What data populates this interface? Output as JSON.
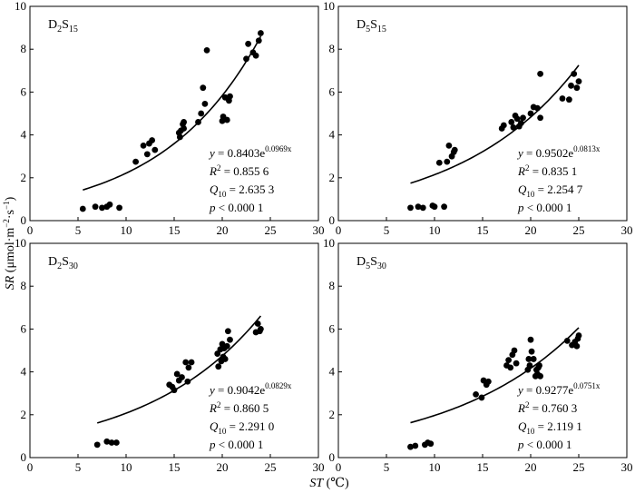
{
  "figure": {
    "y_axis_title": {
      "main": "SR",
      "open": " (μmol·m",
      "exp1": "−2",
      "mid": "·s",
      "exp2": "−1",
      "close": ")"
    },
    "x_axis_title": {
      "main": "ST",
      "unit": " (℃)"
    }
  },
  "chart_data": [
    {
      "type": "scatter",
      "panel": "D2S15",
      "label": {
        "base": "D",
        "sub1": "2",
        "mid": "S",
        "sub2": "15"
      },
      "xlim": [
        0,
        30
      ],
      "ylim": [
        0,
        10
      ],
      "x_ticks": [
        "0",
        "5",
        "10",
        "15",
        "20",
        "25",
        "30"
      ],
      "y_ticks": [
        "0",
        "2",
        "4",
        "6",
        "8",
        "10"
      ],
      "points": [
        [
          5.5,
          0.55
        ],
        [
          6.8,
          0.65
        ],
        [
          7.5,
          0.6
        ],
        [
          8.0,
          0.65
        ],
        [
          8.3,
          0.75
        ],
        [
          9.3,
          0.6
        ],
        [
          11.0,
          2.75
        ],
        [
          11.8,
          3.5
        ],
        [
          12.2,
          3.1
        ],
        [
          12.4,
          3.6
        ],
        [
          12.7,
          3.75
        ],
        [
          13.0,
          3.3
        ],
        [
          15.5,
          4.1
        ],
        [
          15.6,
          3.9
        ],
        [
          15.7,
          4.2
        ],
        [
          15.9,
          4.5
        ],
        [
          16.0,
          4.6
        ],
        [
          16.0,
          4.3
        ],
        [
          17.5,
          4.6
        ],
        [
          17.8,
          5.0
        ],
        [
          18.0,
          6.2
        ],
        [
          18.2,
          5.45
        ],
        [
          18.4,
          7.95
        ],
        [
          20.0,
          4.65
        ],
        [
          20.1,
          4.85
        ],
        [
          20.3,
          5.75
        ],
        [
          20.5,
          4.7
        ],
        [
          20.7,
          5.6
        ],
        [
          20.8,
          5.8
        ],
        [
          22.5,
          7.55
        ],
        [
          22.7,
          8.25
        ],
        [
          23.2,
          7.85
        ],
        [
          23.5,
          7.7
        ],
        [
          23.8,
          8.4
        ],
        [
          24.0,
          8.75
        ]
      ],
      "fit": {
        "a": 0.8403,
        "b": 0.0969,
        "x_range": [
          5.5,
          24
        ]
      },
      "stats": {
        "y_lead": "y",
        "y_eq": " = 0.8403e",
        "y_exp": "0.0969x",
        "r_lead": "R",
        "r_sup": "2",
        "r_val": " = 0.855 6",
        "q_lead": "Q",
        "q_sub": "10",
        "q_val": " = 2.635 3",
        "p_lead": "p",
        "p_val": " < 0.000 1"
      }
    },
    {
      "type": "scatter",
      "panel": "D5S15",
      "label": {
        "base": "D",
        "sub1": "5",
        "mid": "S",
        "sub2": "15"
      },
      "xlim": [
        0,
        30
      ],
      "ylim": [
        0,
        10
      ],
      "x_ticks": [
        "0",
        "5",
        "10",
        "15",
        "20",
        "25",
        "30"
      ],
      "y_ticks": [
        "0",
        "2",
        "4",
        "6",
        "8",
        "10"
      ],
      "points": [
        [
          7.5,
          0.6
        ],
        [
          8.3,
          0.65
        ],
        [
          8.8,
          0.6
        ],
        [
          9.8,
          0.7
        ],
        [
          10.0,
          0.65
        ],
        [
          11.0,
          0.65
        ],
        [
          10.5,
          2.7
        ],
        [
          11.3,
          2.75
        ],
        [
          11.5,
          3.5
        ],
        [
          11.8,
          3.0
        ],
        [
          12.0,
          3.2
        ],
        [
          12.1,
          3.3
        ],
        [
          17.0,
          4.3
        ],
        [
          17.2,
          4.45
        ],
        [
          18.0,
          4.6
        ],
        [
          18.2,
          4.35
        ],
        [
          18.4,
          4.9
        ],
        [
          18.6,
          4.75
        ],
        [
          18.8,
          4.4
        ],
        [
          19.0,
          4.55
        ],
        [
          19.2,
          4.8
        ],
        [
          20.0,
          5.0
        ],
        [
          20.3,
          5.3
        ],
        [
          20.7,
          5.25
        ],
        [
          21.0,
          4.8
        ],
        [
          21.0,
          6.85
        ],
        [
          23.3,
          5.7
        ],
        [
          24.0,
          5.65
        ],
        [
          24.2,
          6.3
        ],
        [
          24.5,
          6.85
        ],
        [
          24.8,
          6.2
        ],
        [
          25.0,
          6.5
        ]
      ],
      "fit": {
        "a": 0.9502,
        "b": 0.0813,
        "x_range": [
          7.5,
          25
        ]
      },
      "stats": {
        "y_lead": "y",
        "y_eq": " = 0.9502e",
        "y_exp": "0.0813x",
        "r_lead": "R",
        "r_sup": "2",
        "r_val": " = 0.835 1",
        "q_lead": "Q",
        "q_sub": "10",
        "q_val": " = 2.254 7",
        "p_lead": "p",
        "p_val": " < 0.000 1"
      }
    },
    {
      "type": "scatter",
      "panel": "D2S30",
      "label": {
        "base": "D",
        "sub1": "2",
        "mid": "S",
        "sub2": "30"
      },
      "xlim": [
        0,
        30
      ],
      "ylim": [
        0,
        10
      ],
      "x_ticks": [
        "0",
        "5",
        "10",
        "15",
        "20",
        "25",
        "30"
      ],
      "y_ticks": [
        "0",
        "2",
        "4",
        "6",
        "8",
        "10"
      ],
      "points": [
        [
          7.0,
          0.6
        ],
        [
          8.0,
          0.75
        ],
        [
          8.5,
          0.7
        ],
        [
          9.0,
          0.7
        ],
        [
          14.5,
          3.4
        ],
        [
          14.8,
          3.3
        ],
        [
          15.0,
          3.15
        ],
        [
          15.3,
          3.9
        ],
        [
          15.5,
          3.6
        ],
        [
          15.8,
          3.75
        ],
        [
          16.2,
          4.45
        ],
        [
          16.4,
          3.55
        ],
        [
          16.5,
          4.2
        ],
        [
          16.8,
          4.45
        ],
        [
          19.5,
          4.85
        ],
        [
          19.6,
          4.25
        ],
        [
          19.8,
          5.05
        ],
        [
          19.9,
          4.5
        ],
        [
          20.0,
          5.3
        ],
        [
          20.1,
          4.7
        ],
        [
          20.2,
          5.1
        ],
        [
          20.3,
          4.6
        ],
        [
          20.5,
          5.2
        ],
        [
          20.6,
          5.9
        ],
        [
          20.8,
          5.5
        ],
        [
          23.5,
          5.85
        ],
        [
          23.7,
          6.25
        ],
        [
          23.9,
          5.9
        ],
        [
          24.0,
          6.0
        ]
      ],
      "fit": {
        "a": 0.9042,
        "b": 0.0829,
        "x_range": [
          7,
          24
        ]
      },
      "stats": {
        "y_lead": "y",
        "y_eq": " = 0.9042e",
        "y_exp": "0.0829x",
        "r_lead": "R",
        "r_sup": "2",
        "r_val": " = 0.860 5",
        "q_lead": "Q",
        "q_sub": "10",
        "q_val": " = 2.291 0",
        "p_lead": "p",
        "p_val": " < 0.000 1"
      }
    },
    {
      "type": "scatter",
      "panel": "D5S30",
      "label": {
        "base": "D",
        "sub1": "5",
        "mid": "S",
        "sub2": "30"
      },
      "xlim": [
        0,
        30
      ],
      "ylim": [
        0,
        10
      ],
      "x_ticks": [
        "0",
        "5",
        "10",
        "15",
        "20",
        "25",
        "30"
      ],
      "y_ticks": [
        "0",
        "2",
        "4",
        "6",
        "8",
        "10"
      ],
      "points": [
        [
          7.5,
          0.5
        ],
        [
          8.0,
          0.55
        ],
        [
          9.0,
          0.6
        ],
        [
          9.3,
          0.7
        ],
        [
          9.6,
          0.65
        ],
        [
          14.3,
          2.95
        ],
        [
          14.9,
          2.8
        ],
        [
          15.1,
          3.6
        ],
        [
          15.4,
          3.4
        ],
        [
          15.6,
          3.55
        ],
        [
          17.5,
          4.3
        ],
        [
          17.7,
          4.55
        ],
        [
          17.9,
          4.2
        ],
        [
          18.1,
          4.8
        ],
        [
          18.3,
          5.0
        ],
        [
          18.5,
          4.4
        ],
        [
          19.7,
          4.1
        ],
        [
          19.8,
          4.6
        ],
        [
          19.9,
          4.3
        ],
        [
          20.0,
          5.5
        ],
        [
          20.1,
          4.95
        ],
        [
          20.3,
          4.6
        ],
        [
          20.5,
          3.8
        ],
        [
          20.6,
          4.1
        ],
        [
          20.7,
          3.9
        ],
        [
          20.8,
          4.2
        ],
        [
          20.9,
          4.3
        ],
        [
          21.0,
          3.8
        ],
        [
          23.8,
          5.45
        ],
        [
          24.3,
          5.25
        ],
        [
          24.6,
          5.4
        ],
        [
          24.8,
          5.2
        ],
        [
          24.9,
          5.55
        ],
        [
          25.0,
          5.7
        ]
      ],
      "fit": {
        "a": 0.9277,
        "b": 0.0751,
        "x_range": [
          7.5,
          25
        ]
      },
      "stats": {
        "y_lead": "y",
        "y_eq": " = 0.9277e",
        "y_exp": "0.0751x",
        "r_lead": "R",
        "r_sup": "2",
        "r_val": " = 0.760 3",
        "q_lead": "Q",
        "q_sub": "10",
        "q_val": " = 2.119 1",
        "p_lead": "p",
        "p_val": " < 0.000 1"
      }
    }
  ]
}
